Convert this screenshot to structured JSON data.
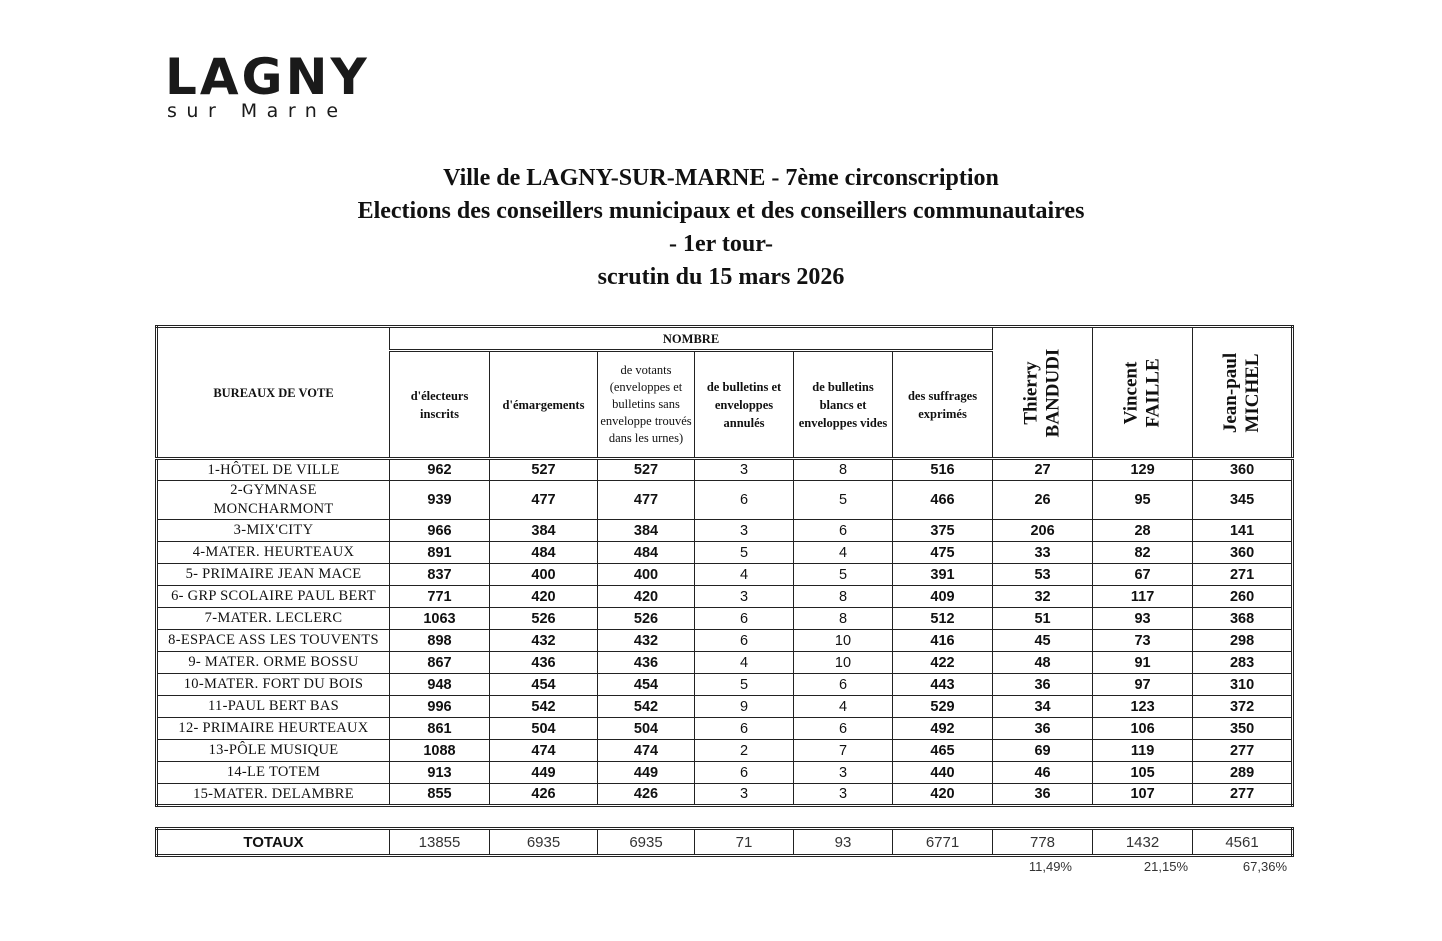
{
  "logo": {
    "main": "LAGNY",
    "sub": "sur Marne"
  },
  "titles": [
    "Ville de LAGNY-SUR-MARNE - 7ème circonscription",
    "Elections des conseillers municipaux et des conseillers communautaires",
    "- 1er tour-",
    "scrutin du 15 mars 2026"
  ],
  "table": {
    "bureaux_header": "BUREAUX DE VOTE",
    "nombre_header": "NOMBRE",
    "columns": [
      "d'électeurs inscrits",
      "d'émargements",
      "de votants (enveloppes et bulletins sans enveloppe trouvés dans les urnes)",
      "de bulletins et enveloppes annulés",
      "de bulletins blancs et enveloppes vides",
      "des suffrages exprimés"
    ],
    "candidates": [
      [
        "Thierry",
        "BANDUDI"
      ],
      [
        "Vincent",
        "FAILLE"
      ],
      [
        "Jean-paul",
        "MICHEL"
      ]
    ],
    "rows": [
      [
        "1-HÔTEL DE VILLE",
        "962",
        "527",
        "527",
        "3",
        "8",
        "516",
        "27",
        "129",
        "360"
      ],
      [
        "2-GYMNASE MONCHARMONT",
        "939",
        "477",
        "477",
        "6",
        "5",
        "466",
        "26",
        "95",
        "345"
      ],
      [
        "3-MIX'CITY",
        "966",
        "384",
        "384",
        "3",
        "6",
        "375",
        "206",
        "28",
        "141"
      ],
      [
        "4-MATER. HEURTEAUX",
        "891",
        "484",
        "484",
        "5",
        "4",
        "475",
        "33",
        "82",
        "360"
      ],
      [
        "5- PRIMAIRE JEAN MACE",
        "837",
        "400",
        "400",
        "4",
        "5",
        "391",
        "53",
        "67",
        "271"
      ],
      [
        "6- GRP SCOLAIRE PAUL BERT",
        "771",
        "420",
        "420",
        "3",
        "8",
        "409",
        "32",
        "117",
        "260"
      ],
      [
        "7-MATER. LECLERC",
        "1063",
        "526",
        "526",
        "6",
        "8",
        "512",
        "51",
        "93",
        "368"
      ],
      [
        "8-ESPACE ASS LES TOUVENTS",
        "898",
        "432",
        "432",
        "6",
        "10",
        "416",
        "45",
        "73",
        "298"
      ],
      [
        "9- MATER. ORME BOSSU",
        "867",
        "436",
        "436",
        "4",
        "10",
        "422",
        "48",
        "91",
        "283"
      ],
      [
        "10-MATER. FORT DU BOIS",
        "948",
        "454",
        "454",
        "5",
        "6",
        "443",
        "36",
        "97",
        "310"
      ],
      [
        "11-PAUL BERT BAS",
        "996",
        "542",
        "542",
        "9",
        "4",
        "529",
        "34",
        "123",
        "372"
      ],
      [
        "12- PRIMAIRE HEURTEAUX",
        "861",
        "504",
        "504",
        "6",
        "6",
        "492",
        "36",
        "106",
        "350"
      ],
      [
        "13-PÔLE MUSIQUE",
        "1088",
        "474",
        "474",
        "2",
        "7",
        "465",
        "69",
        "119",
        "277"
      ],
      [
        "14-LE TOTEM",
        "913",
        "449",
        "449",
        "6",
        "3",
        "440",
        "46",
        "105",
        "289"
      ],
      [
        "15-MATER. DELAMBRE",
        "855",
        "426",
        "426",
        "3",
        "3",
        "420",
        "36",
        "107",
        "277"
      ]
    ],
    "totals": [
      "TOTAUX",
      "13855",
      "6935",
      "6935",
      "71",
      "93",
      "6771",
      "778",
      "1432",
      "4561"
    ],
    "percentages": [
      "11,49%",
      "21,15%",
      "67,36%"
    ]
  }
}
